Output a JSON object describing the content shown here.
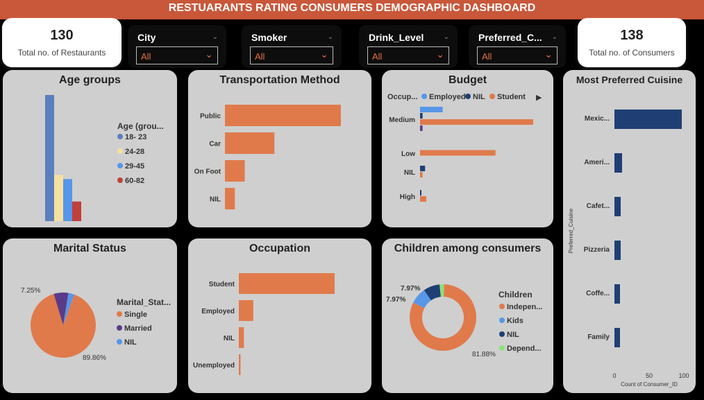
{
  "header": {
    "title": "RESTUARANTS RATING CONSUMERS DEMOGRAPHIC DASHBOARD"
  },
  "kpis": {
    "restaurants": {
      "value": "130",
      "label": "Total no. of Restaurants"
    },
    "consumers": {
      "value": "138",
      "label": "Total no. of Consumers"
    }
  },
  "slicers": [
    {
      "label": "City",
      "value": "All"
    },
    {
      "label": "Smoker",
      "value": "All"
    },
    {
      "label": "Drink_Level",
      "value": "All"
    },
    {
      "label": "Preferred_C...",
      "value": "All"
    }
  ],
  "colors": {
    "orange": "#e07a4b",
    "blue": "#5b7fbd",
    "navy": "#1f3f74",
    "purple": "#5b3a89"
  },
  "chart_data": [
    {
      "id": "age",
      "type": "bar",
      "title": "Age groups",
      "legend_title": "Age (grou...",
      "categories": [
        "18- 23",
        "24-28",
        "29-45",
        "60-82"
      ],
      "values": [
        90,
        33,
        30,
        14
      ],
      "colors": [
        "#5b7fbd",
        "#f6e0a0",
        "#5796e8",
        "#c0403a"
      ],
      "legend": [
        {
          "label": "18- 23",
          "color": "#5b7fbd"
        },
        {
          "label": "24-28",
          "color": "#f6e0a0"
        },
        {
          "label": "29-45",
          "color": "#5796e8"
        },
        {
          "label": "60-82",
          "color": "#c0403a"
        }
      ]
    },
    {
      "id": "transport",
      "type": "bar",
      "orientation": "horizontal",
      "title": "Transportation Method",
      "categories": [
        "Public",
        "Car",
        "On Foot",
        "NIL"
      ],
      "values": [
        82,
        35,
        14,
        7
      ]
    },
    {
      "id": "budget",
      "type": "bar",
      "orientation": "horizontal",
      "title": "Budget",
      "legend_prefix": "Occup...",
      "categories": [
        "Medium",
        "Low",
        "NIL",
        "High"
      ],
      "series": [
        {
          "name": "Employed",
          "color": "#5796e8",
          "values": [
            9,
            0,
            0,
            0
          ]
        },
        {
          "name": "NIL",
          "color": "#1f3f74",
          "values": [
            1,
            0,
            2,
            0.5
          ]
        },
        {
          "name": "Student",
          "color": "#e07a4b",
          "values": [
            45,
            30,
            1,
            2.5
          ]
        }
      ],
      "extra_bars": [
        {
          "category": "Medium",
          "color": "#5b3a89",
          "value": 1
        }
      ]
    },
    {
      "id": "cuisine",
      "type": "bar",
      "orientation": "horizontal",
      "title": "Most Preferred Cuisine",
      "categories": [
        "Mexic...",
        "Ameri...",
        "Cafet...",
        "Pizzeria",
        "Coffe...",
        "Family"
      ],
      "values": [
        97,
        11,
        9,
        9,
        8,
        8
      ],
      "xlabel": "Count of Consumer_ID",
      "ylabel": "Preferred_Cuisine",
      "xticks": [
        "0",
        "50",
        "100"
      ],
      "xlim": [
        0,
        100
      ]
    },
    {
      "id": "marital",
      "type": "pie",
      "title": "Marital Status",
      "legend_title": "Marital_Stat...",
      "slices": [
        {
          "label": "Single",
          "value": 89.86,
          "color": "#e07a4b"
        },
        {
          "label": "Married",
          "value": 7.25,
          "color": "#5b3a89"
        },
        {
          "label": "NIL",
          "value": 2.89,
          "color": "#5796e8"
        }
      ],
      "data_labels": [
        "7.25%",
        "89.86%"
      ]
    },
    {
      "id": "occupation",
      "type": "bar",
      "orientation": "horizontal",
      "title": "Occupation",
      "categories": [
        "Student",
        "Employed",
        "NIL",
        "Unemployed"
      ],
      "values": [
        113,
        17,
        6,
        2
      ]
    },
    {
      "id": "children",
      "type": "pie",
      "donut": true,
      "title": "Children among consumers",
      "legend_title": "Children",
      "slices": [
        {
          "label": "Indepen...",
          "value": 81.88,
          "color": "#e07a4b"
        },
        {
          "label": "Kids",
          "value": 7.97,
          "color": "#5796e8"
        },
        {
          "label": "NIL",
          "value": 7.97,
          "color": "#1f3f74"
        },
        {
          "label": "Depend...",
          "value": 2.18,
          "color": "#8fe07a"
        }
      ],
      "data_labels": [
        "7.97%",
        "7.97%",
        "81.88%"
      ]
    }
  ]
}
